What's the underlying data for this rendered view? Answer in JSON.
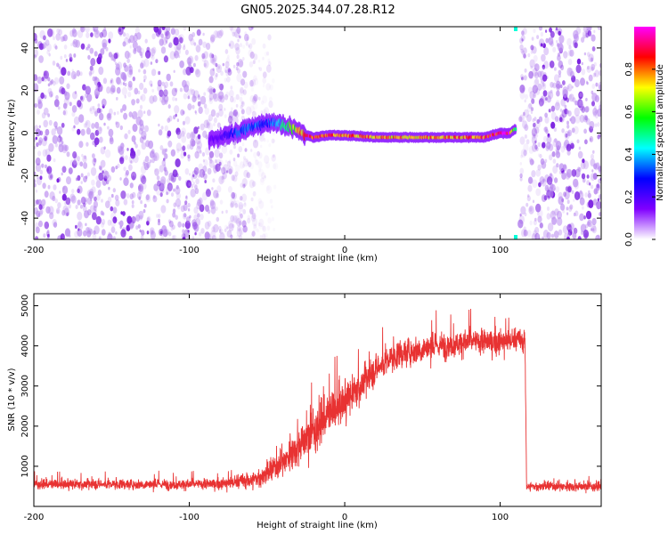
{
  "title": "GN05.2025.344.07.28.R12",
  "colors": {
    "signal": "#e83232",
    "frame": "#000000"
  },
  "chart_data": [
    {
      "type": "heatmap",
      "name": "spectrogram",
      "xlabel": "Height of straight line (km)",
      "ylabel": "Frequency (Hz)",
      "xlim": [
        -200,
        165
      ],
      "ylim": [
        -50,
        50
      ],
      "xticks": [
        -200,
        -100,
        0,
        100
      ],
      "yticks": [
        -40,
        -20,
        0,
        20,
        40
      ],
      "colorbar": {
        "label": "Normalized spectral amplitude",
        "range": [
          0,
          1
        ],
        "ticks": [
          "0.0",
          "0.2",
          "0.4",
          "0.6",
          "0.8"
        ],
        "colormap": [
          "#ffffff",
          "#8000ff",
          "#0000ff",
          "#00ffff",
          "#00ff00",
          "#ffff00",
          "#ff0000",
          "#ff00ff"
        ]
      },
      "signal_track": {
        "x": [
          -87,
          -80,
          -70,
          -60,
          -50,
          -45,
          -40,
          -35,
          -30,
          -25,
          -20,
          -10,
          0,
          20,
          40,
          60,
          80,
          90,
          100,
          106,
          110
        ],
        "y": [
          -3,
          -2,
          0,
          3,
          5,
          5,
          4,
          3,
          1,
          -1,
          -2,
          -1,
          -1,
          -2,
          -2,
          -2,
          -2,
          -2,
          0,
          0,
          2
        ],
        "amplitude": [
          0.15,
          0.2,
          0.3,
          0.35,
          0.3,
          0.35,
          0.45,
          0.6,
          0.7,
          0.85,
          0.85,
          0.8,
          0.8,
          0.75,
          0.75,
          0.75,
          0.8,
          0.85,
          0.9,
          0.95,
          0.5
        ]
      },
      "noise_regions": [
        {
          "x": [
            -200,
            -42
          ],
          "density": "high"
        },
        {
          "x": [
            113,
            165
          ],
          "density": "high"
        }
      ]
    },
    {
      "type": "line",
      "name": "snr",
      "xlabel": "Height of straight line (km)",
      "ylabel": "SNR (10 * v/v)",
      "xlim": [
        -200,
        165
      ],
      "ylim": [
        0,
        5300
      ],
      "xticks": [
        -200,
        -100,
        0,
        100
      ],
      "yticks": [
        1000,
        2000,
        3000,
        4000,
        5000
      ],
      "envelope": {
        "x": [
          -200,
          -100,
          -80,
          -60,
          -50,
          -40,
          -30,
          -20,
          -10,
          0,
          10,
          20,
          30,
          40,
          60,
          80,
          100,
          110,
          116,
          117,
          165
        ],
        "y": [
          550,
          550,
          560,
          650,
          800,
          1100,
          1500,
          1900,
          2300,
          2600,
          3000,
          3400,
          3700,
          3850,
          4000,
          4100,
          4100,
          4150,
          4100,
          500,
          500
        ]
      },
      "noise_amplitude": {
        "x": [
          -200,
          -80,
          -40,
          -20,
          0,
          20,
          116,
          117,
          165
        ],
        "y": [
          180,
          200,
          500,
          900,
          700,
          550,
          450,
          180,
          180
        ]
      }
    }
  ]
}
